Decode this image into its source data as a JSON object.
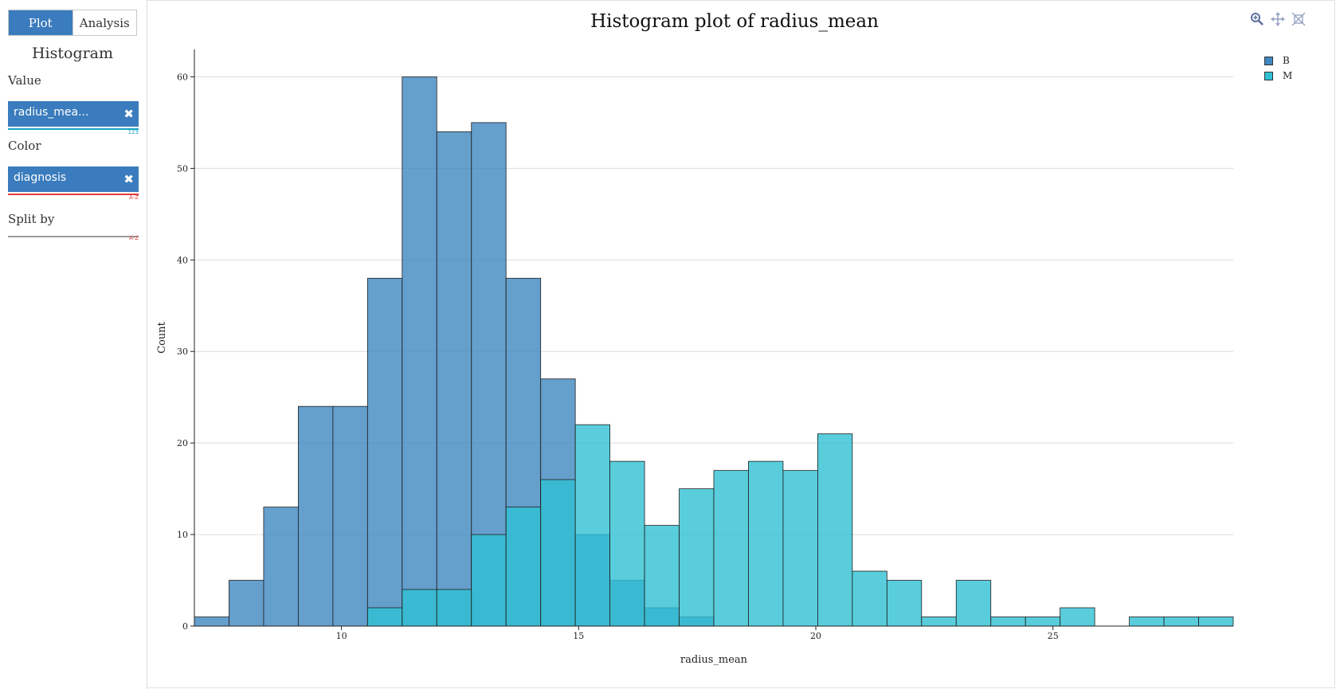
{
  "sidebar": {
    "tabs": [
      {
        "label": "Plot",
        "active": true
      },
      {
        "label": "Analysis",
        "active": false
      }
    ],
    "panel_title": "Histogram",
    "value": {
      "label": "Value",
      "field": "radius_mea...",
      "type_badge": "123",
      "line_color": "#1aa3c4"
    },
    "color": {
      "label": "Color",
      "field": "diagnosis",
      "type_badge": "A-Z",
      "line_color": "#e23c3c"
    },
    "split": {
      "label": "Split by",
      "type_badge": "A-Z"
    }
  },
  "toolbar": {
    "icons": [
      "zoom-icon",
      "pan-icon",
      "reset-icon"
    ]
  },
  "chart_data": {
    "type": "bar",
    "title": "Histogram plot of radius_mean",
    "xlabel": "radius_mean",
    "ylabel": "Count",
    "xlim": [
      6.9,
      28.8
    ],
    "ylim": [
      0,
      63
    ],
    "xticks": [
      10,
      15,
      20,
      25
    ],
    "yticks": [
      0,
      10,
      20,
      30,
      40,
      50,
      60
    ],
    "bin_start": 6.9,
    "bin_width": 0.73,
    "grid": true,
    "legend_placement": "top-right",
    "series": [
      {
        "name": "B",
        "color": "#3e87bf",
        "values": [
          1,
          5,
          13,
          24,
          24,
          38,
          60,
          54,
          55,
          38,
          27,
          10,
          5,
          2,
          1,
          0,
          0,
          0,
          0,
          0,
          0,
          0,
          0,
          0,
          0,
          0,
          0,
          0,
          0,
          0
        ]
      },
      {
        "name": "M",
        "color": "#2fc1d3",
        "values": [
          0,
          0,
          0,
          0,
          0,
          2,
          4,
          4,
          10,
          13,
          16,
          22,
          18,
          11,
          15,
          17,
          18,
          17,
          21,
          6,
          5,
          1,
          5,
          1,
          1,
          2,
          0,
          1,
          1,
          1
        ]
      }
    ]
  }
}
